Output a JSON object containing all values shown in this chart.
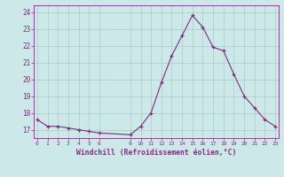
{
  "hours": [
    0,
    1,
    2,
    3,
    4,
    5,
    6,
    9,
    10,
    11,
    12,
    13,
    14,
    15,
    16,
    17,
    18,
    19,
    20,
    21,
    22,
    23
  ],
  "values": [
    17.6,
    17.2,
    17.2,
    17.1,
    17.0,
    16.9,
    16.8,
    16.7,
    17.2,
    18.0,
    19.8,
    21.4,
    22.6,
    23.8,
    23.1,
    21.9,
    21.7,
    20.3,
    19.0,
    18.3,
    17.6,
    17.2
  ],
  "xticks": [
    0,
    1,
    2,
    3,
    4,
    5,
    6,
    9,
    10,
    11,
    12,
    13,
    14,
    15,
    16,
    17,
    18,
    19,
    20,
    21,
    22,
    23
  ],
  "yticks": [
    17,
    18,
    19,
    20,
    21,
    22,
    23,
    24
  ],
  "ylim": [
    16.5,
    24.4
  ],
  "xlim": [
    -0.3,
    23.3
  ],
  "xlabel": "Windchill (Refroidissement éolien,°C)",
  "line_color": "#7b2f7b",
  "bg_color": "#cce8e8",
  "grid_color": "#aacccc"
}
